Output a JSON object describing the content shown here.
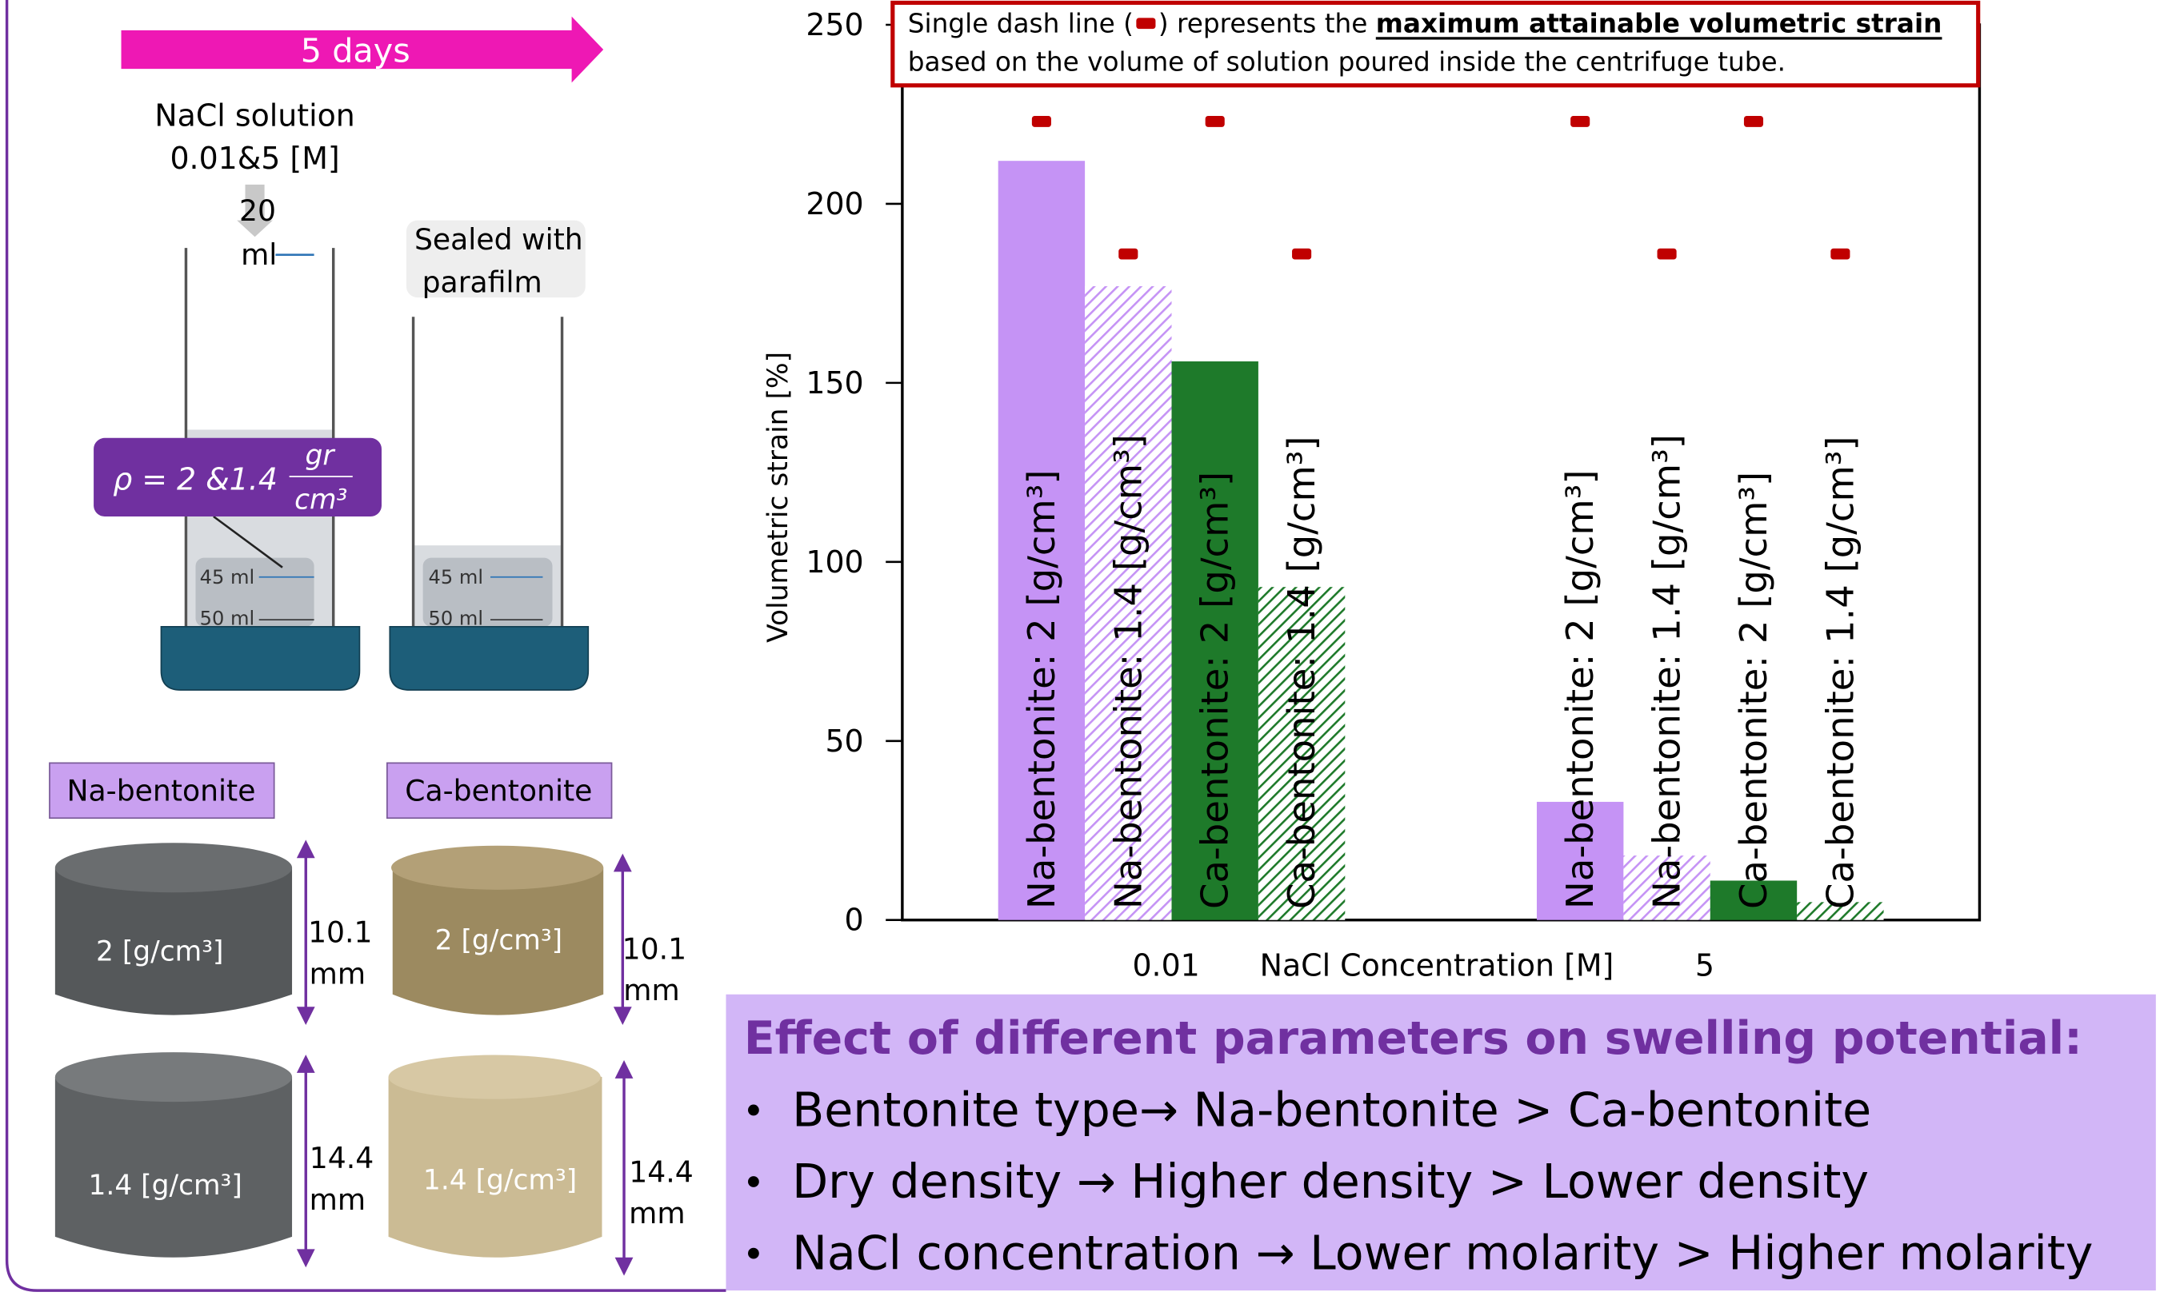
{
  "chart_data": {
    "type": "bar",
    "y_label": "Volumetric strain [%]",
    "x_label": "NaCl Concentration [M]",
    "categories": [
      "0.01",
      "5"
    ],
    "ylim": [
      0,
      250
    ],
    "yticks": [
      0,
      50,
      100,
      150,
      200,
      250
    ],
    "annotation": {
      "before": "Single dash line (",
      "middle": ") represents the ",
      "bold": "maximum attainable volumetric strain",
      "line2": "based on the volume of solution poured inside the centrifuge tube."
    },
    "max_color": "#c00000",
    "series": [
      {
        "name": "Na-bentonite: 2 [g/cm³]",
        "color": "#c593f5",
        "hatch": false,
        "values": [
          212,
          33
        ],
        "max": [
          223,
          223
        ]
      },
      {
        "name": "Na-bentonite: 1.4 [g/cm³]",
        "color": "#c593f5",
        "hatch": true,
        "values": [
          177,
          18
        ],
        "max": [
          186,
          186
        ]
      },
      {
        "name": "Ca-bentonite: 2 [g/cm³]",
        "color": "#1e7a2a",
        "hatch": false,
        "values": [
          156,
          11
        ],
        "max": [
          223,
          223
        ]
      },
      {
        "name": "Ca-bentonite: 1.4 [g/cm³]",
        "color": "#1e7a2a",
        "hatch": true,
        "values": [
          93,
          5
        ],
        "max": [
          186,
          186
        ]
      }
    ]
  },
  "diagram": {
    "duration": "5 days",
    "solution": "NaCl solution",
    "concentration": "0.01&5 [M]",
    "volume_top": "20",
    "volume_unit": "ml",
    "sealed_1": "Sealed with",
    "sealed_2": "parafilm",
    "density_lhs": "ρ = 2 &1.4",
    "density_num": "gr",
    "density_den": "cm³",
    "mark_45": "45 ml",
    "mark_50": "50 ml"
  },
  "samples": {
    "na_title": "Na-bentonite",
    "ca_title": "Ca-bentonite",
    "dense": "2 [g/cm³]",
    "loose": "1.4 [g/cm³]",
    "dense_height": "10.1",
    "loose_height": "14.4",
    "unit": "mm"
  },
  "summary": {
    "title": "Effect of different parameters on swelling potential:",
    "bullets": [
      "Bentonite type→ Na-bentonite > Ca-bentonite",
      "Dry density → Higher density > Lower density",
      "NaCl concentration → Lower molarity > Higher molarity"
    ]
  }
}
